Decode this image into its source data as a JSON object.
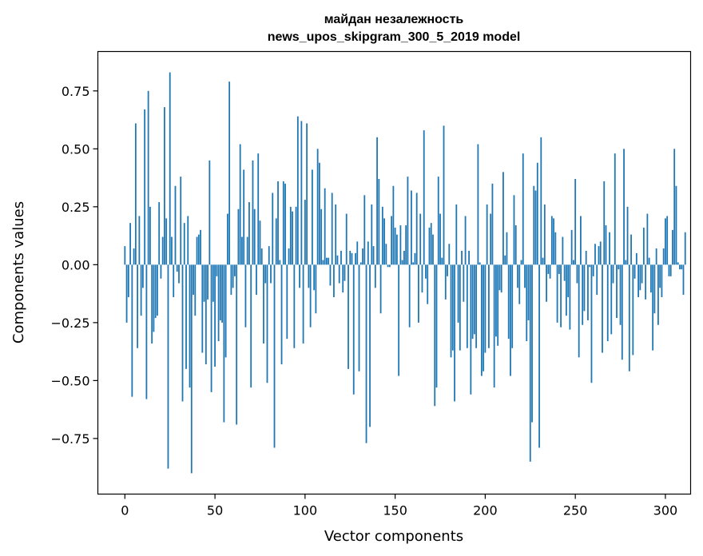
{
  "chart_data": {
    "type": "bar",
    "title_line1": "майдан незалежность",
    "title_line2": "news_upos_skipgram_300_5_2019 model",
    "xlabel": "Vector components",
    "ylabel": "Components values",
    "xlim": [
      -15,
      314
    ],
    "ylim": [
      -0.99,
      0.92
    ],
    "x_ticks": [
      0,
      50,
      100,
      150,
      200,
      250,
      300
    ],
    "x_tick_labels": [
      "0",
      "50",
      "100",
      "150",
      "200",
      "250",
      "300"
    ],
    "y_ticks": [
      -0.75,
      -0.5,
      -0.25,
      0.0,
      0.25,
      0.5,
      0.75
    ],
    "y_tick_labels": [
      "−0.75",
      "−0.50",
      "−0.25",
      "0.00",
      "0.25",
      "0.50",
      "0.75"
    ],
    "bar_color": "#1f77b4",
    "grid": false,
    "values": [
      0.08,
      -0.25,
      -0.14,
      0.18,
      -0.57,
      0.07,
      0.61,
      -0.36,
      0.21,
      -0.22,
      -0.1,
      0.67,
      -0.58,
      0.75,
      0.25,
      -0.34,
      -0.29,
      -0.23,
      -0.22,
      0.27,
      -0.06,
      0.12,
      0.68,
      0.2,
      -0.88,
      0.83,
      0.12,
      -0.14,
      0.34,
      -0.03,
      -0.08,
      0.38,
      -0.59,
      0.18,
      -0.45,
      0.21,
      -0.53,
      -0.9,
      -0.13,
      -0.22,
      0.12,
      0.13,
      0.15,
      -0.38,
      -0.16,
      -0.43,
      -0.15,
      0.45,
      -0.55,
      -0.16,
      -0.44,
      -0.05,
      -0.33,
      -0.24,
      -0.25,
      -0.68,
      -0.4,
      0.22,
      0.79,
      -0.13,
      -0.1,
      -0.05,
      -0.69,
      0.24,
      0.52,
      0.12,
      0.41,
      -0.27,
      0.12,
      0.27,
      -0.53,
      0.45,
      0.24,
      -0.13,
      0.48,
      0.19,
      0.07,
      -0.34,
      -0.08,
      -0.51,
      0.08,
      -0.08,
      0.31,
      -0.79,
      0.2,
      0.36,
      0.02,
      -0.43,
      0.36,
      0.35,
      -0.32,
      0.07,
      0.25,
      0.23,
      -0.36,
      0.25,
      0.64,
      -0.1,
      0.62,
      -0.34,
      0.28,
      0.61,
      -0.1,
      -0.27,
      0.41,
      -0.11,
      -0.21,
      0.5,
      0.44,
      0.24,
      0.02,
      0.33,
      0.03,
      0.03,
      -0.09,
      0.31,
      -0.14,
      0.26,
      0.04,
      -0.08,
      0.06,
      -0.12,
      -0.07,
      0.22,
      -0.45,
      0.06,
      0.05,
      -0.56,
      0.05,
      0.1,
      -0.46,
      0.01,
      0.07,
      0.3,
      -0.77,
      0.1,
      -0.7,
      0.26,
      0.08,
      -0.1,
      0.55,
      0.37,
      -0.21,
      0.25,
      0.2,
      0.09,
      -0.01,
      -0.01,
      0.21,
      0.34,
      0.16,
      0.13,
      -0.48,
      0.17,
      0.02,
      0.06,
      0.17,
      0.38,
      -0.27,
      0.32,
      0.01,
      0.05,
      0.31,
      -0.25,
      0.22,
      -0.12,
      0.58,
      -0.06,
      -0.17,
      0.16,
      0.18,
      0.13,
      -0.61,
      -0.53,
      0.38,
      0.22,
      0.03,
      0.6,
      -0.15,
      -0.05,
      0.09,
      -0.4,
      -0.37,
      -0.59,
      0.26,
      -0.25,
      -0.37,
      0.06,
      -0.16,
      0.21,
      -0.36,
      0.06,
      -0.56,
      -0.32,
      -0.3,
      -0.36,
      0.52,
      0.01,
      -0.48,
      -0.46,
      -0.38,
      0.26,
      -0.36,
      0.22,
      0.35,
      -0.53,
      -0.31,
      -0.35,
      -0.11,
      -0.12,
      0.4,
      0.04,
      0.14,
      -0.32,
      -0.48,
      -0.36,
      0.3,
      0.17,
      -0.1,
      -0.17,
      0.02,
      0.48,
      -0.1,
      -0.33,
      -0.24,
      -0.85,
      -0.68,
      0.34,
      0.32,
      0.44,
      -0.79,
      0.55,
      0.03,
      0.26,
      -0.16,
      -0.04,
      -0.06,
      0.21,
      0.2,
      0.14,
      -0.25,
      -0.04,
      -0.27,
      0.12,
      -0.07,
      -0.22,
      -0.14,
      -0.28,
      0.15,
      0.02,
      0.37,
      -0.08,
      -0.4,
      0.21,
      -0.26,
      -0.2,
      0.06,
      -0.24,
      -0.01,
      -0.51,
      -0.05,
      0.09,
      -0.13,
      0.08,
      0.1,
      -0.38,
      0.36,
      0.17,
      -0.33,
      0.14,
      -0.3,
      -0.08,
      0.48,
      -0.23,
      -0.02,
      -0.26,
      -0.41,
      0.5,
      0.02,
      0.25,
      -0.46,
      0.13,
      -0.39,
      -0.06,
      0.05,
      -0.14,
      -0.11,
      -0.08,
      0.16,
      -0.15,
      0.22,
      0.03,
      -0.12,
      -0.37,
      -0.21,
      0.07,
      -0.26,
      -0.1,
      -0.14,
      0.07,
      0.2,
      0.21,
      -0.05,
      -0.05,
      0.15,
      0.5,
      0.34,
      0.01,
      -0.02,
      -0.02,
      -0.13,
      0.14
    ]
  }
}
